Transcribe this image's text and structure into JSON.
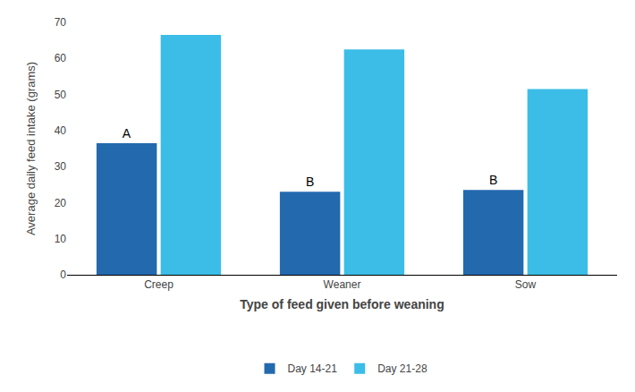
{
  "chart_data": {
    "type": "bar",
    "xlabel": "Type of feed given before weaning",
    "ylabel": "Average daily feed intake (grams)",
    "categories": [
      "Creep",
      "Weaner",
      "Sow"
    ],
    "series": [
      {
        "name": "Day 14-21",
        "color": "#2369ae",
        "values": [
          36.5,
          23.0,
          23.5
        ],
        "annotations": [
          "A",
          "B",
          "B"
        ]
      },
      {
        "name": "Day 21-28",
        "color": "#3bbde8",
        "values": [
          66.5,
          62.5,
          51.5
        ]
      }
    ],
    "ylim": [
      0,
      70
    ],
    "yticks": [
      0,
      10,
      20,
      30,
      40,
      50,
      60,
      70
    ],
    "grid": false,
    "legend": "bottom"
  }
}
